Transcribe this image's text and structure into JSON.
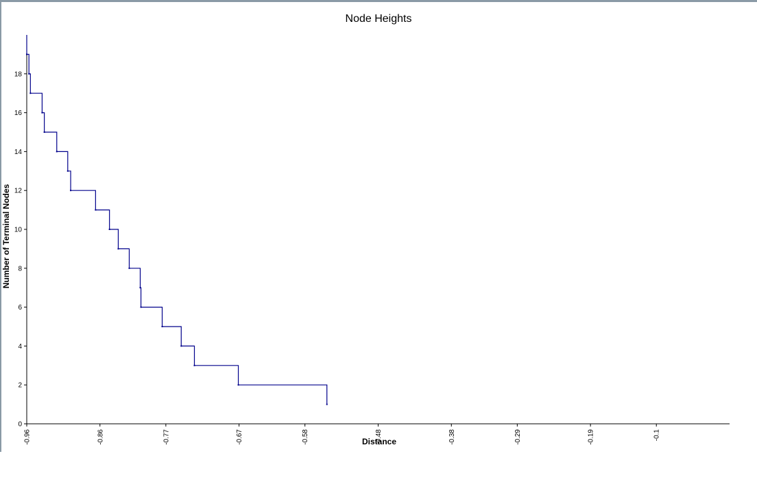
{
  "chart_data": {
    "type": "line",
    "step": true,
    "title": "Node Heights",
    "xlabel": "Distance",
    "ylabel": "Number of Terminal Nodes",
    "xlim": [
      -0.96,
      -0.0
    ],
    "ylim": [
      0,
      20
    ],
    "x_ticks": [
      -0.96,
      -0.86,
      -0.77,
      -0.67,
      -0.58,
      -0.48,
      -0.38,
      -0.29,
      -0.19,
      -0.1
    ],
    "x_tick_labels": [
      "-0.96",
      "-0.86",
      "-0.77",
      "-0.67",
      "-0.58",
      "-0.48",
      "-0.38",
      "-0.29",
      "-0.19",
      "-0.1"
    ],
    "y_ticks": [
      0,
      2,
      4,
      6,
      8,
      10,
      12,
      14,
      16,
      18
    ],
    "y_tick_labels": [
      "0",
      "2",
      "4",
      "6",
      "8",
      "10",
      "12",
      "14",
      "16",
      "18"
    ],
    "grid": false,
    "series_color": "#00008b",
    "series": [
      {
        "x": [
          -0.96,
          -0.957,
          -0.955,
          -0.939,
          -0.936,
          -0.919,
          -0.904,
          -0.9,
          -0.866,
          -0.847,
          -0.835,
          -0.82,
          -0.805,
          -0.804,
          -0.775,
          -0.749,
          -0.731,
          -0.671,
          -0.55
        ],
        "y": [
          20,
          19,
          18,
          17,
          16,
          15,
          14,
          13,
          12,
          11,
          10,
          9,
          8,
          7,
          6,
          5,
          4,
          3,
          2
        ],
        "end_y": 1
      }
    ]
  }
}
